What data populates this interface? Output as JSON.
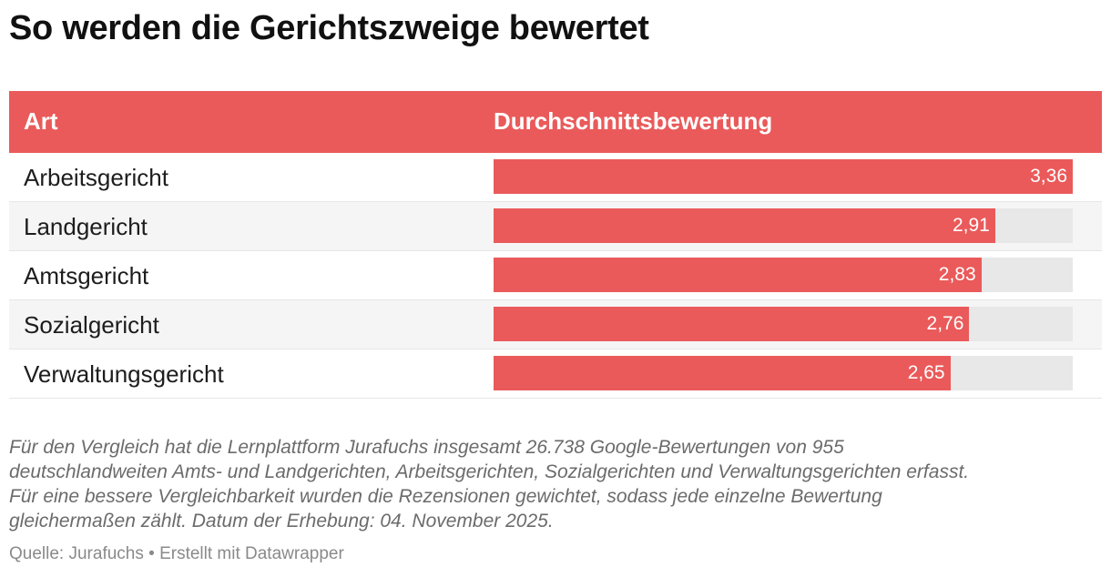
{
  "title": "So werden die Gerichtszweige bewertet",
  "chart_data": {
    "type": "table",
    "columns": [
      "Art",
      "Durchschnittsbewertung"
    ],
    "categories": [
      "Arbeitsgericht",
      "Landgericht",
      "Amtsgericht",
      "Sozialgericht",
      "Verwaltungsgericht"
    ],
    "values": [
      3.36,
      2.91,
      2.83,
      2.76,
      2.65
    ],
    "value_labels": [
      "3,36",
      "2,91",
      "2,83",
      "2,76",
      "2,65"
    ],
    "bar_max": 3.36,
    "bar_color": "#ea5a5a",
    "track_color": "#e8e8e8"
  },
  "notes": [
    "Für den Vergleich hat die Lernplattform Jurafuchs insgesamt 26.738 Google-Bewertungen von 955",
    "deutschlandweiten Amts- und Landgerichten, Arbeitsgerichten, Sozialgerichten und Verwaltungsgerichten erfasst.",
    "Für eine bessere Vergleichbarkeit wurden die Rezensionen gewichtet, sodass jede einzelne Bewertung",
    "gleichermaßen zählt. Datum der Erhebung: 04. November 2025."
  ],
  "source": "Quelle: Jurafuchs • Erstellt mit Datawrapper"
}
